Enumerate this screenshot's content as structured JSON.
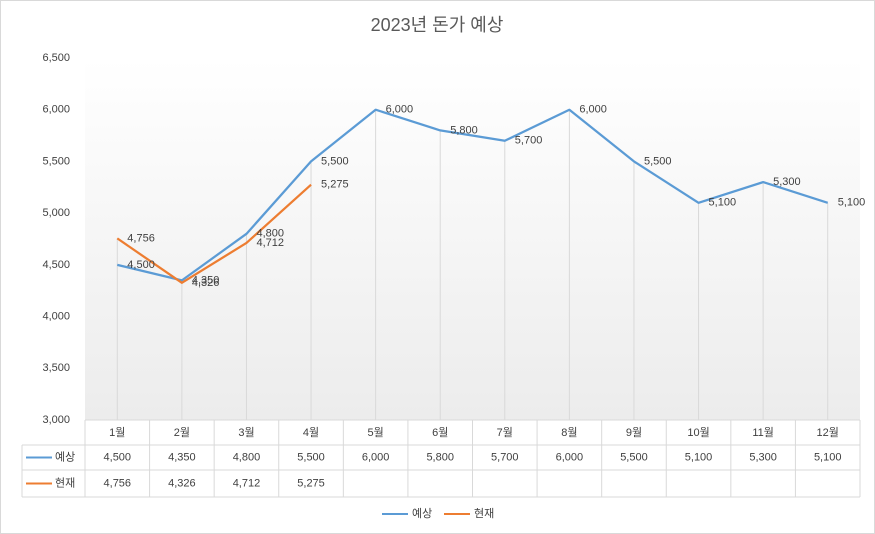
{
  "chart_data": {
    "type": "line",
    "title": "2023년 돈가 예상",
    "categories": [
      "1월",
      "2월",
      "3월",
      "4월",
      "5월",
      "6월",
      "7월",
      "8월",
      "9월",
      "10월",
      "11월",
      "12월"
    ],
    "series": [
      {
        "name": "예상",
        "color": "#5b9bd5",
        "values": [
          4500,
          4350,
          4800,
          5500,
          6000,
          5800,
          5700,
          6000,
          5500,
          5100,
          5300,
          5100
        ],
        "value_labels": [
          "4,500",
          "4,350",
          "4,800",
          "5,500",
          "6,000",
          "5,800",
          "5,700",
          "6,000",
          "5,500",
          "5,100",
          "5,300",
          "5,100"
        ]
      },
      {
        "name": "현재",
        "color": "#ed7d31",
        "values": [
          4756,
          4326,
          4712,
          5275,
          null,
          null,
          null,
          null,
          null,
          null,
          null,
          null
        ],
        "value_labels": [
          "4,756",
          "4,326",
          "4,712",
          "5,275",
          null,
          null,
          null,
          null,
          null,
          null,
          null,
          null
        ]
      }
    ],
    "ylim": [
      3000,
      6500
    ],
    "yticks": [
      {
        "value": 3000,
        "label": "3,000"
      },
      {
        "value": 3500,
        "label": "3,500"
      },
      {
        "value": 4000,
        "label": "4,000"
      },
      {
        "value": 4500,
        "label": "4,500"
      },
      {
        "value": 5000,
        "label": "5,000"
      },
      {
        "value": 5500,
        "label": "5,500"
      },
      {
        "value": 6000,
        "label": "6,000"
      },
      {
        "value": 6500,
        "label": "6,500"
      }
    ],
    "data_table": true,
    "drop_lines": true,
    "legend": "bottom"
  }
}
